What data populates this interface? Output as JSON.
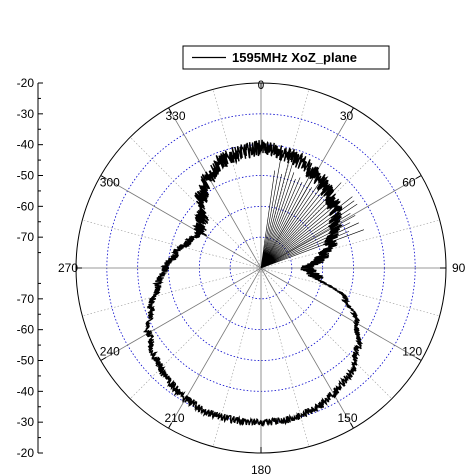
{
  "chart_data": {
    "type": "polar-line",
    "series": [
      {
        "name": "1595MHz XoZ_plane",
        "angle_deg": [
          0,
          10,
          20,
          30,
          40,
          50,
          60,
          70,
          80,
          90,
          100,
          110,
          120,
          130,
          140,
          150,
          160,
          170,
          180,
          190,
          200,
          210,
          220,
          230,
          240,
          250,
          260,
          270,
          280,
          290,
          300,
          310,
          320,
          330,
          340,
          350
        ],
        "gain_db": [
          -41,
          -42,
          -43,
          -45,
          -47,
          -49,
          -52,
          -56,
          -60,
          -65,
          -62,
          -51,
          -44,
          -39,
          -35,
          -33,
          -31,
          -30,
          -30,
          -30,
          -30,
          -31,
          -33,
          -35,
          -38,
          -42,
          -46,
          -49,
          -52,
          -55,
          -57,
          -55,
          -50,
          -46,
          -43,
          -42
        ],
        "color": "#000000"
      }
    ],
    "radial_axis": {
      "range": [
        -80,
        -20
      ],
      "ticks": [
        -20,
        -30,
        -40,
        -50,
        -60,
        -70
      ],
      "tick_labels_upper": [
        "-20",
        "-30",
        "-40",
        "-50",
        "-60",
        "-70"
      ],
      "tick_labels_lower": [
        "-70",
        "-60",
        "-50",
        "-40",
        "-30",
        "-20"
      ]
    },
    "angular_axis": {
      "labels": [
        "0",
        "30",
        "60",
        "90",
        "120",
        "150",
        "180",
        "210",
        "240",
        "270",
        "300",
        "330"
      ],
      "direction": "clockwise",
      "zero_at": "top",
      "major_spokes_deg": 30,
      "minor_spokes_deg": 15
    },
    "grid": true,
    "legend_position": "top-right",
    "colors": {
      "grid_circle": "#0000cc",
      "spoke": "#999999",
      "outline": "#000000"
    }
  }
}
